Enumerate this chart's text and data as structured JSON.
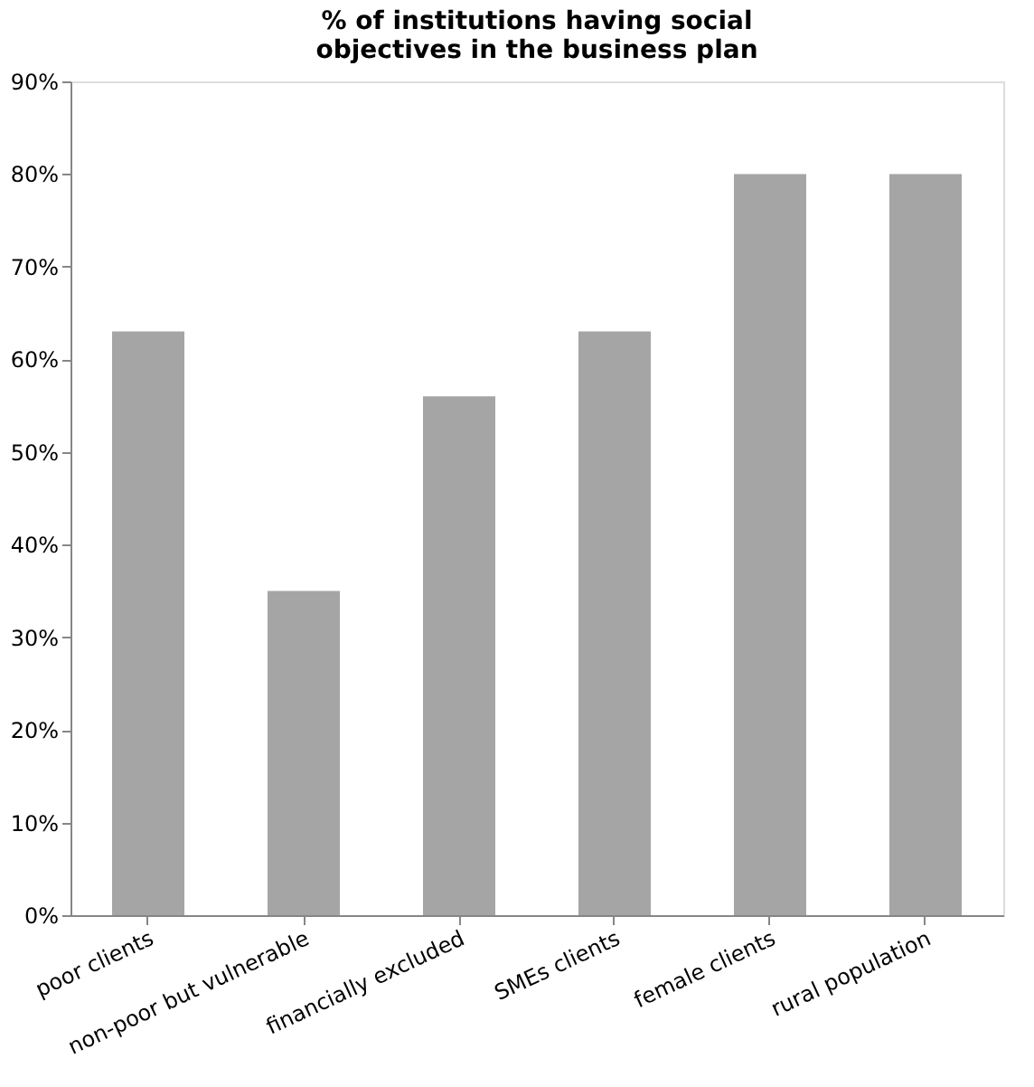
{
  "chart_data": {
    "type": "bar",
    "title": "% of institutions having social objectives in the business plan",
    "categories": [
      "poor clients",
      "non-poor but vulnerable",
      "financially excluded",
      "SMEs clients",
      "female clients",
      "rural population"
    ],
    "values": [
      63,
      35,
      56,
      63,
      80,
      80
    ],
    "color": "#a5a5a5",
    "ylim": [
      0,
      90
    ],
    "yticks": [
      {
        "value": 0,
        "label": "0%"
      },
      {
        "value": 10,
        "label": "10%"
      },
      {
        "value": 20,
        "label": "20%"
      },
      {
        "value": 30,
        "label": "30%"
      },
      {
        "value": 40,
        "label": "40%"
      },
      {
        "value": 50,
        "label": "50%"
      },
      {
        "value": 60,
        "label": "60%"
      },
      {
        "value": 70,
        "label": "70%"
      },
      {
        "value": 80,
        "label": "80%"
      },
      {
        "value": 90,
        "label": "90%"
      }
    ],
    "grid": false
  }
}
